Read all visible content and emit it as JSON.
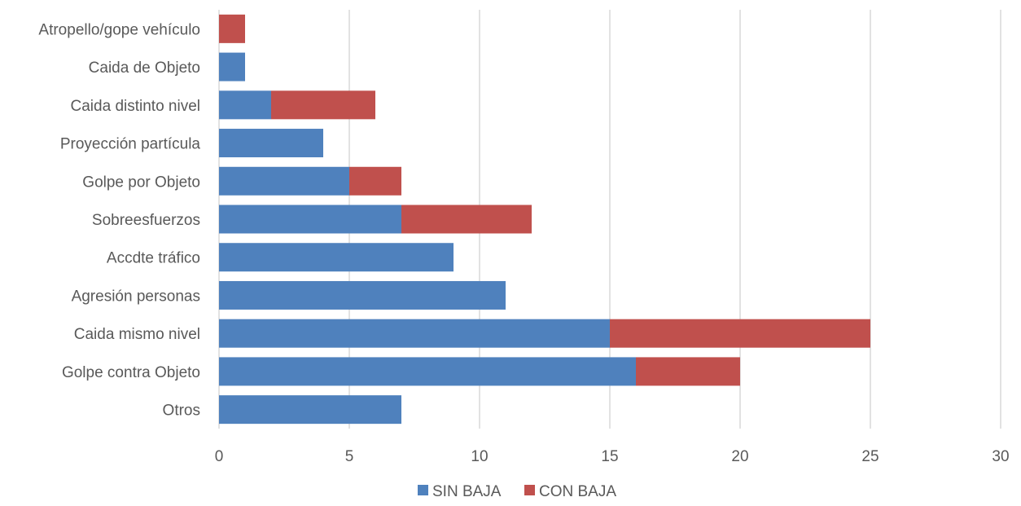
{
  "chart_data": {
    "type": "bar",
    "orientation": "horizontal",
    "stacked": true,
    "categories": [
      "Atropello/gope vehículo",
      "Caida de Objeto",
      "Caida distinto nivel",
      "Proyección partícula",
      "Golpe por Objeto",
      "Sobreesfuerzos",
      "Accdte tráfico",
      "Agresión personas",
      "Caida mismo nivel",
      "Golpe contra Objeto",
      "Otros"
    ],
    "series": [
      {
        "name": "SIN BAJA",
        "color": "#4f81bd",
        "values": [
          0,
          1,
          2,
          4,
          5,
          7,
          9,
          11,
          15,
          16,
          7
        ]
      },
      {
        "name": "CON BAJA",
        "color": "#c0504d",
        "values": [
          1,
          0,
          4,
          0,
          2,
          5,
          0,
          0,
          10,
          4,
          0
        ]
      }
    ],
    "xlim": [
      0,
      30
    ],
    "xticks": [
      "0",
      "5",
      "10",
      "15",
      "20",
      "25",
      "30"
    ],
    "grid": "vertical",
    "legend": "bottom",
    "gridline_color": "#d9d9d9"
  }
}
